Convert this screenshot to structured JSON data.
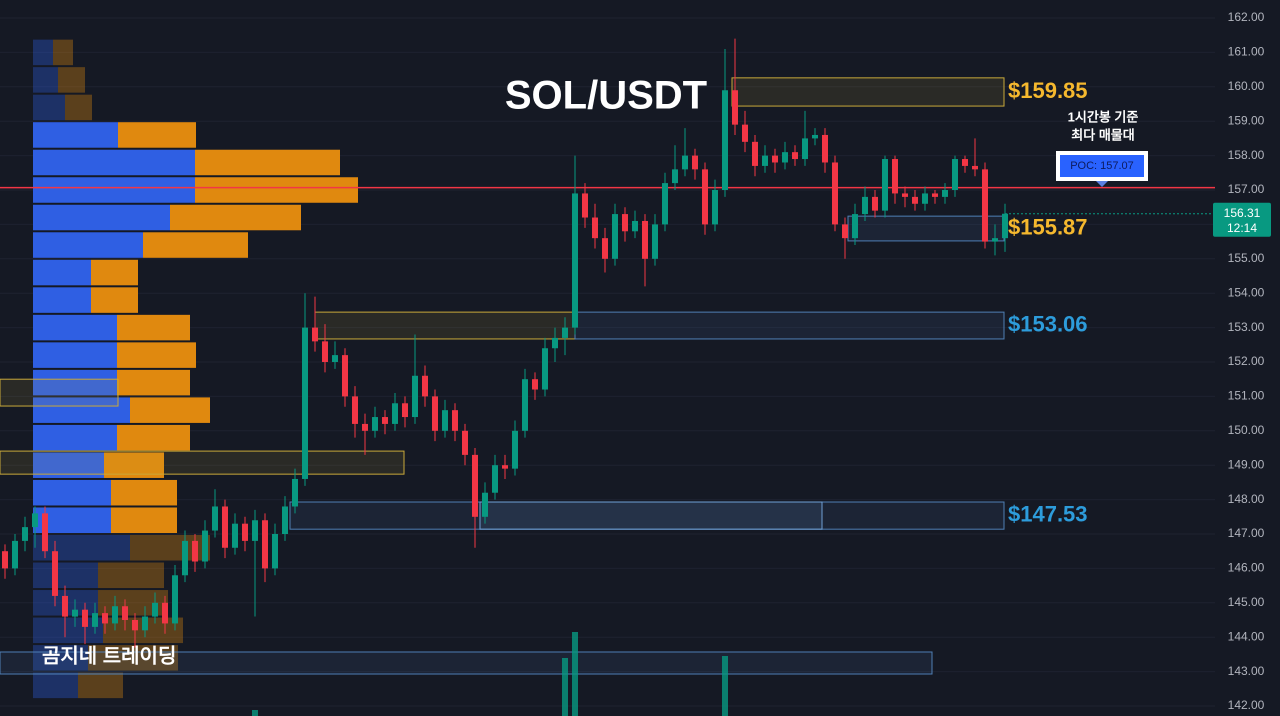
{
  "chart_data": {
    "type": "candlestick",
    "title": "SOL/USDT",
    "watermark": "곰지네 트레이딩",
    "ylim": [
      142,
      162
    ],
    "yticks": [
      {
        "value": 162,
        "label": "162.00"
      },
      {
        "value": 161,
        "label": "161.00"
      },
      {
        "value": 160,
        "label": "160.00"
      },
      {
        "value": 159,
        "label": "159.00"
      },
      {
        "value": 158,
        "label": "158.00"
      },
      {
        "value": 157,
        "label": "157.00"
      },
      {
        "value": 156,
        "label": "156.00"
      },
      {
        "value": 155,
        "label": "155.00"
      },
      {
        "value": 154,
        "label": "154.00"
      },
      {
        "value": 153,
        "label": "153.00"
      },
      {
        "value": 152,
        "label": "152.00"
      },
      {
        "value": 151,
        "label": "151.00"
      },
      {
        "value": 150,
        "label": "150.00"
      },
      {
        "value": 149,
        "label": "149.00"
      },
      {
        "value": 148,
        "label": "148.00"
      },
      {
        "value": 147,
        "label": "147.00"
      },
      {
        "value": 146,
        "label": "146.00"
      },
      {
        "value": 145,
        "label": "145.00"
      },
      {
        "value": 144,
        "label": "144.00"
      },
      {
        "value": 143,
        "label": "143.00"
      },
      {
        "value": 142,
        "label": "142.00"
      }
    ],
    "grid": true,
    "up_color": "#089981",
    "down_color": "#f23645",
    "candles": [
      [
        146.5,
        146.7,
        145.7,
        146.0
      ],
      [
        146.0,
        147.0,
        145.8,
        146.8
      ],
      [
        146.8,
        147.5,
        146.5,
        147.2
      ],
      [
        147.2,
        147.8,
        146.6,
        147.6
      ],
      [
        147.6,
        147.8,
        146.3,
        146.5
      ],
      [
        146.5,
        146.8,
        144.9,
        145.2
      ],
      [
        145.2,
        145.5,
        144.0,
        144.6
      ],
      [
        144.6,
        145.1,
        144.3,
        144.8
      ],
      [
        144.8,
        145.0,
        143.8,
        144.3
      ],
      [
        144.3,
        145.0,
        144.1,
        144.7
      ],
      [
        144.7,
        144.9,
        144.1,
        144.4
      ],
      [
        144.4,
        145.2,
        144.2,
        144.9
      ],
      [
        144.9,
        145.1,
        144.2,
        144.5
      ],
      [
        144.5,
        144.7,
        143.7,
        144.2
      ],
      [
        144.2,
        144.9,
        144.0,
        144.6
      ],
      [
        144.6,
        145.3,
        144.4,
        145.0
      ],
      [
        145.0,
        145.2,
        144.1,
        144.4
      ],
      [
        144.4,
        146.1,
        144.2,
        145.8
      ],
      [
        145.8,
        147.1,
        145.6,
        146.8
      ],
      [
        146.8,
        147.0,
        145.9,
        146.2
      ],
      [
        146.2,
        147.4,
        146.0,
        147.1
      ],
      [
        147.1,
        148.3,
        146.9,
        147.8
      ],
      [
        147.8,
        148.0,
        146.3,
        146.6
      ],
      [
        146.6,
        147.6,
        146.4,
        147.3
      ],
      [
        147.3,
        147.5,
        146.5,
        146.8
      ],
      [
        146.8,
        147.7,
        144.6,
        147.4
      ],
      [
        147.4,
        147.6,
        145.6,
        146.0
      ],
      [
        146.0,
        147.3,
        145.8,
        147.0
      ],
      [
        147.0,
        148.1,
        146.8,
        147.8
      ],
      [
        147.8,
        148.9,
        147.6,
        148.6
      ],
      [
        148.6,
        154.0,
        148.4,
        153.0
      ],
      [
        153.0,
        153.9,
        152.3,
        152.6
      ],
      [
        152.6,
        153.1,
        151.7,
        152.0
      ],
      [
        152.0,
        152.6,
        151.8,
        152.2
      ],
      [
        152.2,
        152.4,
        150.7,
        151.0
      ],
      [
        151.0,
        151.3,
        149.8,
        150.2
      ],
      [
        150.2,
        150.5,
        149.3,
        150.0
      ],
      [
        150.0,
        150.7,
        149.8,
        150.4
      ],
      [
        150.4,
        150.6,
        149.9,
        150.2
      ],
      [
        150.2,
        151.1,
        150.0,
        150.8
      ],
      [
        150.8,
        151.0,
        150.1,
        150.4
      ],
      [
        150.4,
        152.8,
        150.2,
        151.6
      ],
      [
        151.6,
        151.9,
        150.7,
        151.0
      ],
      [
        151.0,
        151.2,
        149.7,
        150.0
      ],
      [
        150.0,
        150.9,
        149.8,
        150.6
      ],
      [
        150.6,
        150.8,
        149.7,
        150.0
      ],
      [
        150.0,
        150.2,
        149.0,
        149.3
      ],
      [
        149.3,
        149.5,
        146.6,
        147.5
      ],
      [
        147.5,
        148.5,
        147.3,
        148.2
      ],
      [
        148.2,
        149.3,
        148.0,
        149.0
      ],
      [
        149.0,
        149.3,
        148.6,
        148.9
      ],
      [
        148.9,
        150.3,
        148.7,
        150.0
      ],
      [
        150.0,
        151.8,
        149.8,
        151.5
      ],
      [
        151.5,
        151.7,
        150.9,
        151.2
      ],
      [
        151.2,
        152.7,
        151.0,
        152.4
      ],
      [
        152.4,
        153.0,
        152.0,
        152.7
      ],
      [
        152.7,
        153.3,
        152.2,
        153.0
      ],
      [
        153.0,
        158.0,
        152.8,
        156.9
      ],
      [
        156.9,
        157.2,
        155.9,
        156.2
      ],
      [
        156.2,
        156.6,
        155.3,
        155.6
      ],
      [
        155.6,
        155.9,
        154.6,
        155.0
      ],
      [
        155.0,
        156.6,
        154.8,
        156.3
      ],
      [
        156.3,
        156.5,
        155.5,
        155.8
      ],
      [
        155.8,
        156.4,
        155.6,
        156.1
      ],
      [
        156.1,
        156.3,
        154.2,
        155.0
      ],
      [
        155.0,
        156.3,
        154.8,
        156.0
      ],
      [
        156.0,
        157.5,
        155.8,
        157.2
      ],
      [
        157.2,
        158.3,
        157.0,
        157.6
      ],
      [
        157.6,
        158.8,
        157.4,
        158.0
      ],
      [
        158.0,
        158.2,
        157.3,
        157.6
      ],
      [
        157.6,
        157.8,
        155.7,
        156.0
      ],
      [
        156.0,
        157.3,
        155.8,
        157.0
      ],
      [
        157.0,
        161.1,
        156.8,
        159.9
      ],
      [
        159.9,
        161.4,
        158.6,
        158.9
      ],
      [
        158.9,
        159.3,
        158.1,
        158.4
      ],
      [
        158.4,
        158.6,
        157.4,
        157.7
      ],
      [
        157.7,
        158.3,
        157.5,
        158.0
      ],
      [
        158.0,
        158.2,
        157.5,
        157.8
      ],
      [
        157.8,
        158.4,
        157.6,
        158.1
      ],
      [
        158.1,
        158.3,
        157.7,
        157.9
      ],
      [
        157.9,
        159.3,
        157.7,
        158.5
      ],
      [
        158.5,
        158.8,
        158.3,
        158.6
      ],
      [
        158.6,
        158.8,
        157.5,
        157.8
      ],
      [
        157.8,
        158.0,
        155.8,
        156.0
      ],
      [
        156.0,
        156.2,
        155.0,
        155.6
      ],
      [
        155.6,
        156.6,
        155.4,
        156.3
      ],
      [
        156.3,
        157.1,
        156.1,
        156.8
      ],
      [
        156.8,
        157.0,
        156.2,
        156.4
      ],
      [
        156.4,
        158.0,
        156.2,
        157.9
      ],
      [
        157.9,
        158.0,
        156.6,
        156.9
      ],
      [
        156.9,
        157.1,
        156.5,
        156.8
      ],
      [
        156.8,
        157.0,
        156.4,
        156.6
      ],
      [
        156.6,
        157.1,
        156.4,
        156.9
      ],
      [
        156.9,
        157.0,
        156.6,
        156.8
      ],
      [
        156.8,
        157.2,
        156.6,
        157.0
      ],
      [
        157.0,
        158.0,
        156.8,
        157.9
      ],
      [
        157.9,
        158.0,
        157.5,
        157.7
      ],
      [
        157.7,
        158.5,
        157.4,
        157.6
      ],
      [
        157.6,
        157.8,
        155.3,
        155.5
      ],
      [
        155.5,
        156.0,
        155.1,
        155.6
      ],
      [
        155.6,
        156.6,
        155.2,
        156.31
      ]
    ],
    "volume": {
      "index": [
        25,
        56,
        57,
        72
      ],
      "values": [
        6,
        58,
        84,
        60
      ]
    },
    "profile": {
      "bins": [
        161.4,
        160.6,
        159.8,
        159.0,
        158.2,
        157.4,
        156.6,
        155.8,
        155.0,
        154.2,
        153.4,
        152.6,
        151.8,
        151.0,
        150.2,
        149.4,
        148.6,
        147.8,
        147.0,
        146.2,
        145.4,
        144.6,
        143.8,
        143.0,
        142.2
      ],
      "buy": [
        20,
        25,
        32,
        85,
        162,
        162,
        137,
        110,
        58,
        58,
        84,
        84,
        84,
        97,
        84,
        71,
        78,
        78,
        97,
        65,
        65,
        70,
        55,
        45
      ],
      "sell": [
        20,
        27,
        27,
        78,
        145,
        163,
        131,
        105,
        47,
        47,
        73,
        79,
        73,
        80,
        73,
        60,
        66,
        66,
        80,
        66,
        70,
        80,
        90,
        45
      ],
      "buy_color": "#2f5fe3",
      "sell_color": "#e0890f",
      "value_area": [
        147.0,
        159.0
      ]
    },
    "zones": [
      {
        "low": 159.44,
        "high": 160.26,
        "from": 72.7,
        "to": 99.9,
        "color": "#c9a93a",
        "price": {
          "value": 159.85,
          "label": "$159.85"
        },
        "label_color": "#f5b82e"
      },
      {
        "low": 152.67,
        "high": 153.45,
        "from": 31,
        "to": 57,
        "color": "#c9a93a"
      },
      {
        "low": 152.67,
        "high": 153.45,
        "from": 57,
        "to": 99.9,
        "color": "#4f7fb5",
        "price": {
          "value": 153.06,
          "label": "$153.06"
        },
        "label_color": "#2d9cdb"
      },
      {
        "low": 155.52,
        "high": 156.24,
        "from": 84.3,
        "to": 99.9,
        "color": "#4f7fb5",
        "price": {
          "value": 155.87,
          "label": "$155.87"
        },
        "label_color": "#f5b82e"
      },
      {
        "low": 147.14,
        "high": 147.93,
        "from": 28.5,
        "to": 99.9,
        "color": "#4f7fb5",
        "price": {
          "value": 147.53,
          "label": "$147.53"
        },
        "label_color": "#2d9cdb"
      },
      {
        "low": 147.14,
        "high": 147.93,
        "from": 47.5,
        "to": 81.7,
        "color": "#6f9fd5"
      },
      {
        "low": 148.74,
        "high": 149.41,
        "from": -0.5,
        "to": 39.9,
        "color": "#c9a93a"
      },
      {
        "low": 150.72,
        "high": 151.5,
        "from": -0.5,
        "to": 11.3,
        "color": "#c9a93a"
      },
      {
        "low": 142.93,
        "high": 143.57,
        "from": -0.5,
        "to": 92.7,
        "color": "#4f7fb5"
      }
    ],
    "poc": {
      "value": 157.07,
      "label": "POC: 157.07",
      "color": "#f23645",
      "note": [
        "1시간봉 기준",
        "최다 매물대"
      ]
    },
    "last_price": {
      "value": 156.31,
      "label": "156.31",
      "countdown": "12:14",
      "color": "#089981"
    }
  }
}
